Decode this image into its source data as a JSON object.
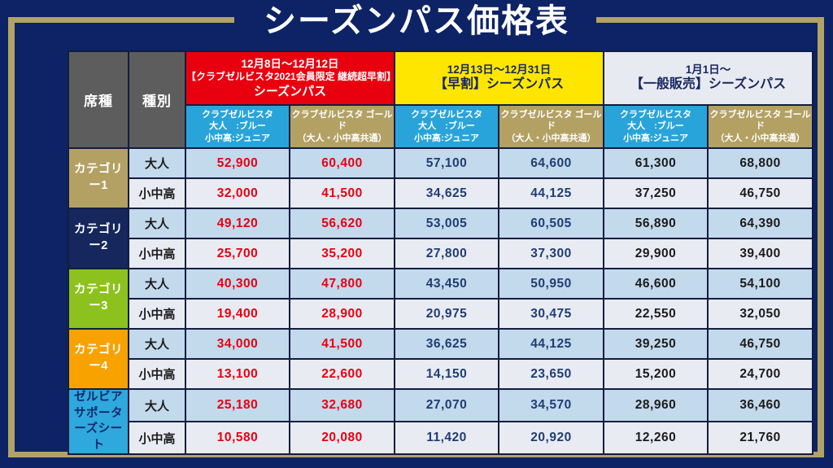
{
  "title": "シーズンパス価格表",
  "colors": {
    "page_background": "#0d2365",
    "frame_gold": "#b2a268",
    "grid_line": "#121d40",
    "section_member_bg": "#e8000f",
    "section_early_bg": "#ffe600",
    "section_general_bg": "#e8eaf2",
    "passtype_blue_bg": "#29a4da",
    "passtype_gold_bg": "#b3a164",
    "row_adult_bg": "#c3d9ec",
    "row_youth_bg": "#e9ebf3",
    "price_member_text": "#e8000f",
    "price_early_text": "#1f3d74",
    "price_general_text": "#1b1b1b"
  },
  "table": {
    "corner": {
      "seat_header": "席種",
      "type_header": "種別"
    },
    "sections": [
      {
        "name": "member-early-renewal",
        "lines": [
          "12月8日〜12月12日",
          "【クラブゼルビスタ2021会員限定 継続超早割】",
          "シーズンパス"
        ]
      },
      {
        "name": "early-bird",
        "lines": [
          "12月13日〜12月31日",
          "【早割】シーズンパス"
        ]
      },
      {
        "name": "general-sale",
        "lines": [
          "1月1日〜",
          "【一般販売】シーズンパス"
        ]
      }
    ],
    "pass_types": [
      {
        "name": "club-zelvista-blue-junior",
        "lines": [
          "クラブゼルビスタ",
          "大人　:ブルー",
          "小中高:ジュニア"
        ]
      },
      {
        "name": "club-zelvista-gold-common",
        "lines": [
          "クラブゼルビスタ ゴールド",
          "（大人・小中高共通）"
        ]
      }
    ],
    "price_colors": [
      "#e8000f",
      "#e8000f",
      "#1f3d74",
      "#1f3d74",
      "#1b1b1b",
      "#1b1b1b"
    ],
    "row_groups": [
      {
        "label_lines": [
          "カテゴリー1"
        ],
        "bg": "#b3a164",
        "fg": "#ffffff",
        "rows": [
          {
            "type": "大人",
            "values": [
              "52,900",
              "60,400",
              "57,100",
              "64,600",
              "61,300",
              "68,800"
            ]
          },
          {
            "type": "小中高",
            "values": [
              "32,000",
              "41,500",
              "34,625",
              "44,125",
              "37,250",
              "46,750"
            ]
          }
        ]
      },
      {
        "label_lines": [
          "カテゴリー2"
        ],
        "bg": "#16275e",
        "fg": "#ffffff",
        "rows": [
          {
            "type": "大人",
            "values": [
              "49,120",
              "56,620",
              "53,005",
              "60,505",
              "56,890",
              "64,390"
            ]
          },
          {
            "type": "小中高",
            "values": [
              "25,700",
              "35,200",
              "27,800",
              "37,300",
              "29,900",
              "39,400"
            ]
          }
        ]
      },
      {
        "label_lines": [
          "カテゴリー3"
        ],
        "bg": "#8dc21e",
        "fg": "#ffffff",
        "rows": [
          {
            "type": "大人",
            "values": [
              "40,300",
              "47,800",
              "43,450",
              "50,950",
              "46,600",
              "54,100"
            ]
          },
          {
            "type": "小中高",
            "values": [
              "19,400",
              "28,900",
              "20,975",
              "30,475",
              "22,550",
              "32,050"
            ]
          }
        ]
      },
      {
        "label_lines": [
          "カテゴリー4"
        ],
        "bg": "#f8a200",
        "fg": "#ffffff",
        "rows": [
          {
            "type": "大人",
            "values": [
              "34,000",
              "41,500",
              "36,625",
              "44,125",
              "39,250",
              "46,750"
            ]
          },
          {
            "type": "小中高",
            "values": [
              "13,100",
              "22,600",
              "14,150",
              "23,650",
              "15,200",
              "24,700"
            ]
          }
        ]
      },
      {
        "label_lines": [
          "ゼルビア",
          "サポーターズシート"
        ],
        "bg": "#2fa8dd",
        "fg": "#10296b",
        "rows": [
          {
            "type": "大人",
            "values": [
              "25,180",
              "32,680",
              "27,070",
              "34,570",
              "28,960",
              "36,460"
            ]
          },
          {
            "type": "小中高",
            "values": [
              "10,580",
              "20,080",
              "11,420",
              "20,920",
              "12,260",
              "21,760"
            ]
          }
        ]
      }
    ]
  }
}
